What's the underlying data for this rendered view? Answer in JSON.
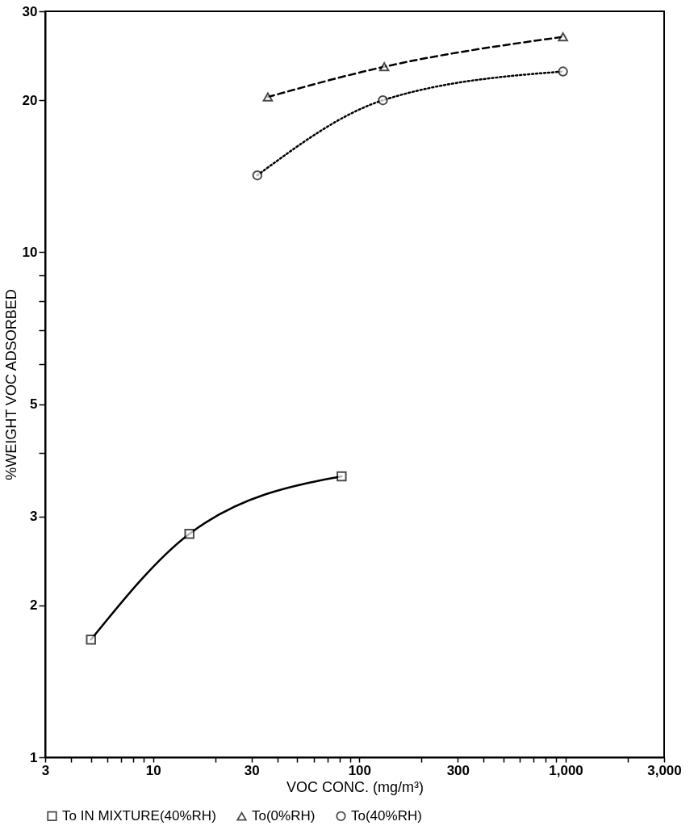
{
  "chart_data": {
    "type": "line",
    "xlabel": "VOC CONC. (mg/m³)",
    "ylabel": "%WEIGHT VOC ADSORBED",
    "log": "xy",
    "xlim": [
      3,
      3000
    ],
    "ylim": [
      1,
      30
    ],
    "xticks": [
      3,
      {
        "value": 4,
        "label": null
      },
      {
        "value": 5,
        "label": null
      },
      {
        "value": 6,
        "label": null
      },
      {
        "value": 7,
        "label": null
      },
      {
        "value": 8,
        "label": null
      },
      {
        "value": 9,
        "label": null
      },
      10,
      {
        "value": 20,
        "label": null
      },
      30,
      {
        "value": 40,
        "label": null
      },
      {
        "value": 50,
        "label": null
      },
      {
        "value": 60,
        "label": null
      },
      {
        "value": 70,
        "label": null
      },
      {
        "value": 80,
        "label": null
      },
      {
        "value": 90,
        "label": null
      },
      100,
      {
        "value": 200,
        "label": null
      },
      300,
      {
        "value": 400,
        "label": null
      },
      {
        "value": 500,
        "label": null
      },
      {
        "value": 600,
        "label": null
      },
      {
        "value": 700,
        "label": null
      },
      {
        "value": 800,
        "label": null
      },
      {
        "value": 900,
        "label": null
      },
      {
        "value": 1000,
        "label": "1,000"
      },
      {
        "value": 2000,
        "label": null
      },
      {
        "value": 3000,
        "label": "3,000"
      }
    ],
    "yticks": [
      1,
      2,
      3,
      {
        "value": 4,
        "label": null
      },
      5,
      {
        "value": 6,
        "label": null
      },
      {
        "value": 7,
        "label": null
      },
      {
        "value": 8,
        "label": null
      },
      {
        "value": 9,
        "label": null
      },
      10,
      20,
      30
    ],
    "grid": false,
    "legend": "bottom",
    "series": [
      {
        "name": "To IN MIXTURE(40%RH)",
        "color": "#000000",
        "x": [
          5,
          15,
          82
        ],
        "values": [
          1.71,
          2.77,
          3.6
        ],
        "marker": "square",
        "line_style": "solid"
      },
      {
        "name": "To(0%RH)",
        "color": "#000000",
        "x": [
          36,
          132,
          970
        ],
        "values": [
          20.3,
          23.3,
          26.7
        ],
        "marker": "triangle",
        "line_style": "dashed"
      },
      {
        "name": "To(40%RH)",
        "color": "#000000",
        "x": [
          32,
          130,
          970
        ],
        "values": [
          14.2,
          20,
          22.8
        ],
        "marker": "circle",
        "line_style": "dotted"
      }
    ]
  }
}
